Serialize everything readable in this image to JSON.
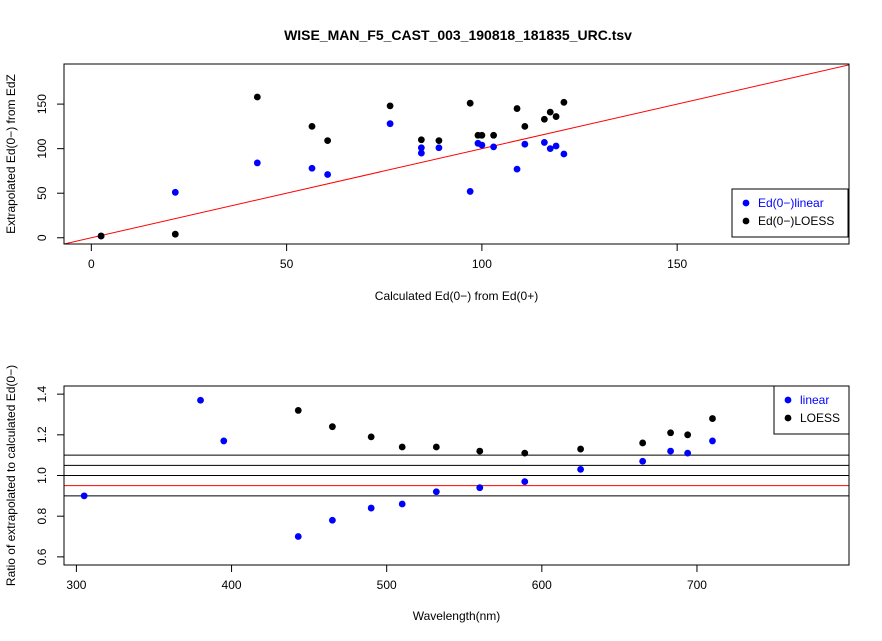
{
  "chart_data": [
    {
      "type": "scatter",
      "title": "WISE_MAN_F5_CAST_003_190818_181835_URC.tsv",
      "xlabel": "Calculated Ed(0−) from Ed(0+)",
      "ylabel": "Extrapolated Ed(0−) from EdZ",
      "xlim": [
        -7,
        194
      ],
      "ylim": [
        -7,
        195
      ],
      "xticks": [
        0,
        50,
        100,
        150
      ],
      "yticks": [
        0,
        50,
        100,
        150
      ],
      "legend_position": "bottom-right",
      "reference_line": {
        "type": "1:1",
        "color": "#ff0000"
      },
      "series": [
        {
          "name": "Ed(0−)linear",
          "color": "#0000ff",
          "x": [
            2.5,
            21.5,
            42.5,
            56.5,
            60.5,
            76.5,
            84.5,
            84.5,
            89,
            97,
            99,
            100,
            103,
            109,
            111,
            116,
            117.5,
            119,
            121
          ],
          "y": [
            2,
            51,
            84,
            78,
            71,
            128,
            95,
            101,
            101,
            52,
            106,
            104,
            102,
            77,
            105,
            107,
            100,
            103,
            94
          ]
        },
        {
          "name": "Ed(0−)LOESS",
          "color": "#000000",
          "x": [
            2.5,
            21.5,
            42.5,
            56.5,
            60.5,
            76.5,
            84.5,
            89,
            97,
            99,
            100,
            103,
            109,
            111,
            116,
            117.5,
            119,
            121
          ],
          "y": [
            2,
            4,
            158,
            125,
            109,
            148,
            110,
            109,
            151,
            115,
            115,
            115,
            145,
            125,
            133,
            141,
            136,
            152
          ]
        }
      ]
    },
    {
      "type": "scatter",
      "title": "",
      "xlabel": "Wavelength(nm)",
      "ylabel": "Ratio of extrapolated to calculated Ed(0−)",
      "xlim": [
        292,
        798
      ],
      "ylim": [
        0.56,
        1.44
      ],
      "xticks": [
        300,
        400,
        500,
        600,
        700
      ],
      "yticks": [
        0.6,
        0.8,
        1.0,
        1.2,
        1.4
      ],
      "ytick_labels": [
        "0.6",
        "0.8",
        "1.0",
        "1.2",
        "1.4"
      ],
      "legend_position": "top-right",
      "reference_lines": [
        {
          "y": 0.9,
          "color": "#000000"
        },
        {
          "y": 0.95,
          "color": "#ff0000"
        },
        {
          "y": 1.0,
          "color": "#000000"
        },
        {
          "y": 1.05,
          "color": "#000000"
        },
        {
          "y": 1.1,
          "color": "#000000"
        }
      ],
      "series": [
        {
          "name": "linear",
          "color": "#0000ff",
          "x": [
            305,
            380,
            395,
            443,
            465,
            490,
            510,
            532,
            560,
            589,
            625,
            665,
            683,
            694,
            710
          ],
          "y": [
            0.9,
            1.37,
            1.17,
            0.7,
            0.78,
            0.84,
            0.86,
            0.92,
            0.94,
            0.97,
            1.03,
            1.07,
            1.12,
            1.11,
            1.17
          ]
        },
        {
          "name": "LOESS",
          "color": "#000000",
          "x": [
            443,
            465,
            490,
            510,
            532,
            560,
            589,
            625,
            665,
            683,
            694,
            710
          ],
          "y": [
            1.32,
            1.24,
            1.19,
            1.14,
            1.14,
            1.12,
            1.11,
            1.13,
            1.16,
            1.21,
            1.2,
            1.28
          ]
        }
      ]
    }
  ]
}
